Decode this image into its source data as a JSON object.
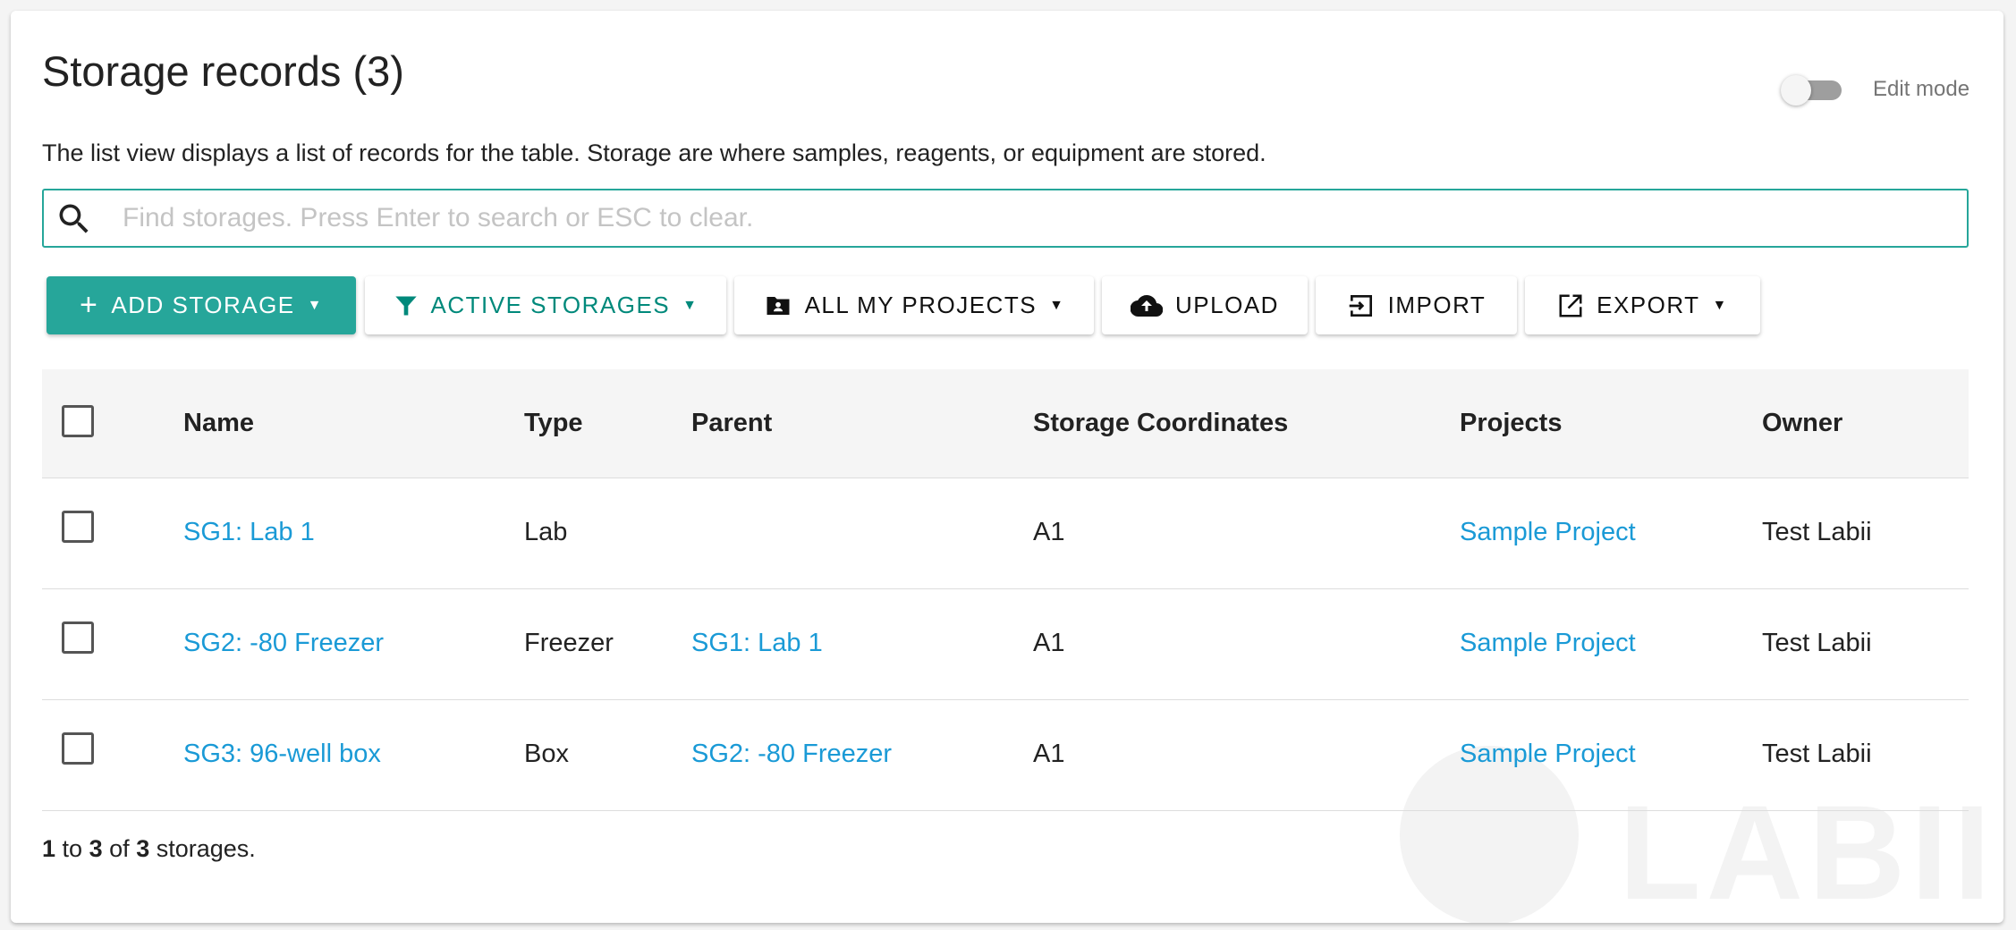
{
  "header": {
    "title": "Storage records (3)",
    "edit_mode_label": "Edit mode",
    "edit_mode_on": false,
    "description": "The list view displays a list of records for the table. Storage are where samples, reagents, or equipment are stored."
  },
  "search": {
    "placeholder": "Find storages. Press Enter to search or ESC to clear.",
    "value": ""
  },
  "toolbar": {
    "add": "ADD STORAGE",
    "filter": "ACTIVE STORAGES",
    "projects": "ALL MY PROJECTS",
    "upload": "UPLOAD",
    "import": "IMPORT",
    "export": "EXPORT"
  },
  "table": {
    "columns": [
      "Name",
      "Type",
      "Parent",
      "Storage Coordinates",
      "Projects",
      "Owner"
    ],
    "rows": [
      {
        "name": "SG1: Lab 1",
        "type": "Lab",
        "parent": "",
        "coords": "A1",
        "projects": "Sample Project",
        "owner": "Test Labii"
      },
      {
        "name": "SG2: -80 Freezer",
        "type": "Freezer",
        "parent": "SG1: Lab 1",
        "coords": "A1",
        "projects": "Sample Project",
        "owner": "Test Labii"
      },
      {
        "name": "SG3: 96-well box",
        "type": "Box",
        "parent": "SG2: -80 Freezer",
        "coords": "A1",
        "projects": "Sample Project",
        "owner": "Test Labii"
      }
    ]
  },
  "footer": {
    "from": "1",
    "to_word": "to",
    "to": "3",
    "of_word": "of",
    "total": "3",
    "suffix": "storages."
  },
  "watermark": "LABII",
  "colors": {
    "accent": "#26a69a",
    "link": "#1a9ad6"
  }
}
